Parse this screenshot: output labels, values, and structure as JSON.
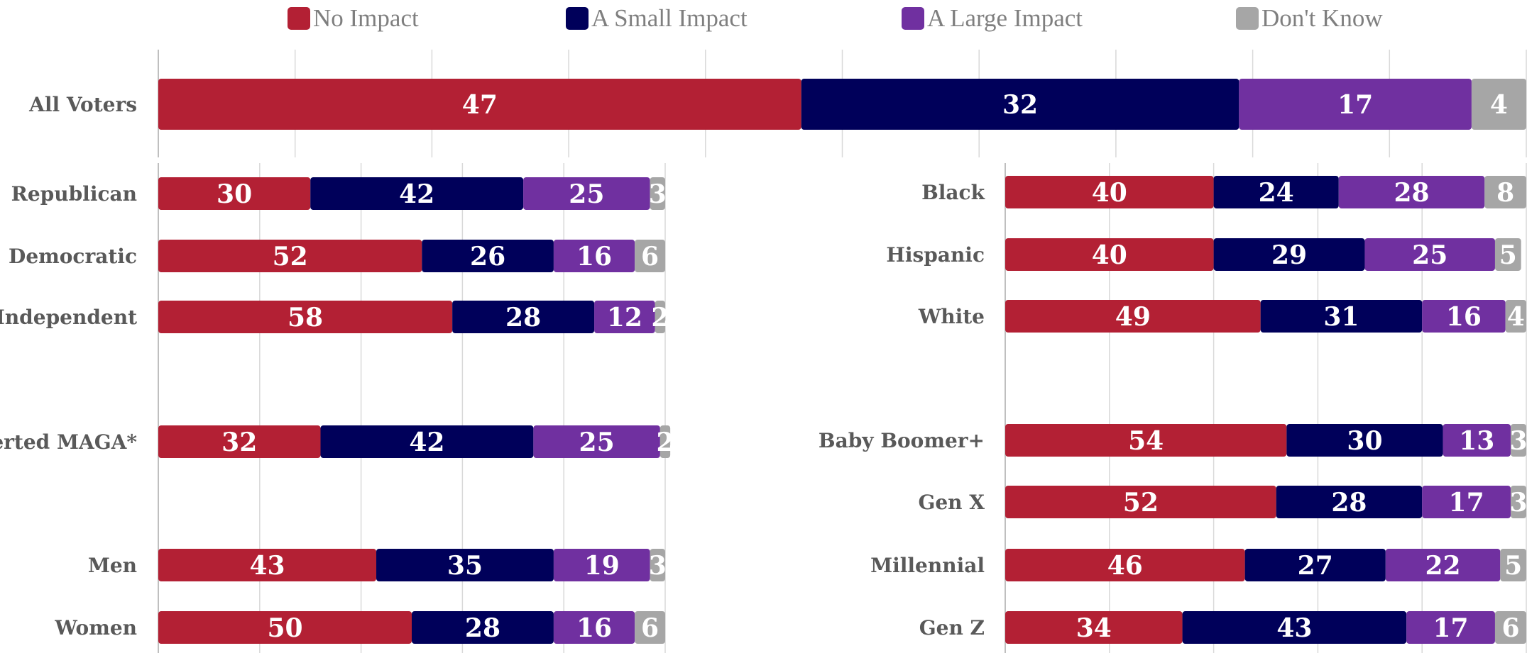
{
  "legend": [
    {
      "label": "No Impact",
      "color": "#b32034"
    },
    {
      "label": "A Small Impact",
      "color": "#00005a"
    },
    {
      "label": "A Large Impact",
      "color": "#7030a0"
    },
    {
      "label": "Don't Know",
      "color": "#a6a6a6"
    }
  ],
  "chart_data": [
    {
      "type": "bar",
      "orientation": "horizontal",
      "stacked": true,
      "categories": [
        "All Voters"
      ],
      "series": [
        {
          "name": "No Impact",
          "values": [
            47
          ]
        },
        {
          "name": "A Small Impact",
          "values": [
            32
          ]
        },
        {
          "name": "A Large Impact",
          "values": [
            17
          ]
        },
        {
          "name": "Don't Know",
          "values": [
            4
          ]
        }
      ],
      "xlim": [
        0,
        100
      ],
      "grid": true,
      "legend": "top"
    },
    {
      "type": "bar",
      "orientation": "horizontal",
      "stacked": true,
      "categories": [
        "Republican",
        "Democratic",
        "Independent",
        "Converted MAGA*",
        "Men",
        "Women"
      ],
      "series": [
        {
          "name": "No Impact",
          "values": [
            30,
            52,
            58,
            32,
            43,
            50
          ]
        },
        {
          "name": "A Small Impact",
          "values": [
            42,
            26,
            28,
            42,
            35,
            28
          ]
        },
        {
          "name": "A Large Impact",
          "values": [
            25,
            16,
            12,
            25,
            19,
            16
          ]
        },
        {
          "name": "Don't Know",
          "values": [
            3,
            6,
            2,
            2,
            3,
            6
          ]
        }
      ],
      "xlim": [
        0,
        100
      ],
      "grid": true
    },
    {
      "type": "bar",
      "orientation": "horizontal",
      "stacked": true,
      "categories": [
        "Black",
        "Hispanic",
        "White",
        "Baby Boomer+",
        "Gen X",
        "Millennial",
        "Gen Z"
      ],
      "series": [
        {
          "name": "No Impact",
          "values": [
            40,
            40,
            49,
            54,
            52,
            46,
            34
          ]
        },
        {
          "name": "A Small Impact",
          "values": [
            24,
            29,
            31,
            30,
            28,
            27,
            43
          ]
        },
        {
          "name": "A Large Impact",
          "values": [
            28,
            25,
            16,
            13,
            17,
            22,
            17
          ]
        },
        {
          "name": "Don't Know",
          "values": [
            8,
            5,
            4,
            3,
            3,
            5,
            6
          ]
        }
      ],
      "xlim": [
        0,
        100
      ],
      "grid": true
    }
  ]
}
